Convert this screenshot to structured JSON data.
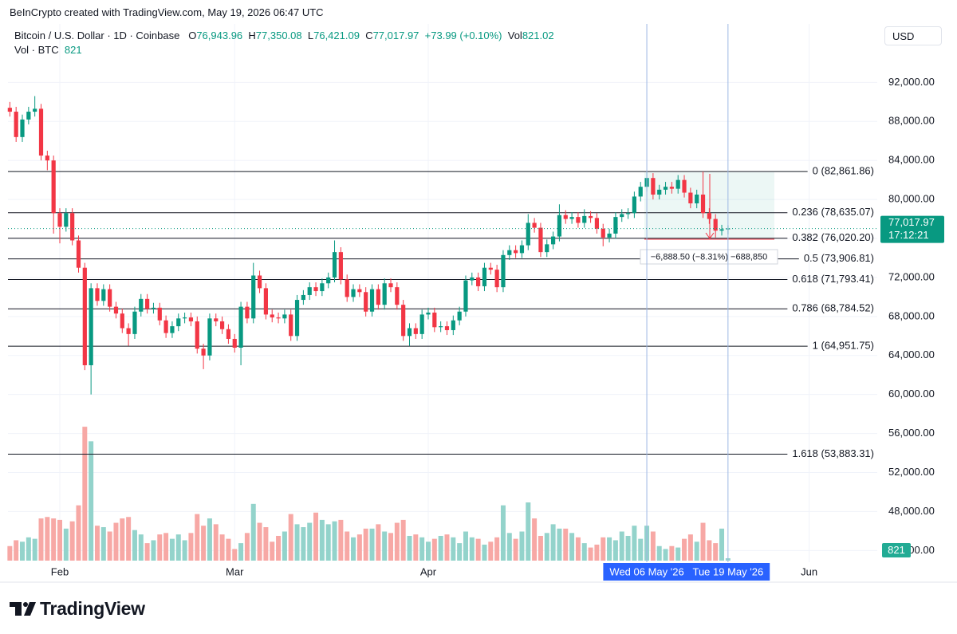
{
  "header": {
    "attribution": "BeInCrypto created with TradingView.com, May 19, 2026 06:47 UTC"
  },
  "chart_data": {
    "type": "candlestick",
    "title": "Bitcoin / U.S. Dollar · 1D · Coinbase",
    "legend": {
      "open_key": "O",
      "open": "76,943.96",
      "high_key": "H",
      "high": "77,350.08",
      "low_key": "L",
      "low": "76,421.09",
      "close_key": "C",
      "close": "77,017.97",
      "change": "+73.99 (+0.10%)",
      "vol_key": "Vol",
      "vol": "821.02"
    },
    "currency": "USD",
    "categories": [
      null,
      null,
      null,
      null,
      null,
      null,
      null,
      null,
      null,
      null,
      null,
      null,
      null,
      null,
      null,
      null,
      null,
      null,
      null,
      null,
      null,
      null,
      null,
      null,
      null,
      null,
      null,
      null,
      null,
      null,
      null,
      null,
      null,
      null,
      null,
      null,
      null,
      null,
      null,
      null,
      null,
      null,
      null,
      null,
      null,
      null,
      null,
      null,
      null,
      null,
      null,
      null,
      null,
      null,
      null,
      null,
      null,
      null,
      null,
      null,
      null,
      null,
      null,
      null,
      null,
      null,
      null,
      null,
      null,
      null,
      null,
      null,
      null,
      null,
      null,
      null,
      null,
      null,
      null,
      null,
      null,
      null,
      null,
      null,
      null,
      null,
      null,
      null,
      null,
      null,
      null,
      null,
      null,
      null,
      null,
      null,
      null,
      null,
      null,
      null,
      null,
      null,
      "Wed 06 May '26",
      null,
      null,
      null,
      null,
      null,
      null,
      null,
      null,
      null,
      null,
      null,
      null,
      "Tue 19 May '26"
    ],
    "open": [
      89400,
      89000,
      86400,
      88200,
      89000,
      89300,
      84500,
      84000,
      78600,
      77200,
      78600,
      75800,
      73000,
      63000,
      70900,
      69600,
      70800,
      69000,
      68300,
      66800,
      66200,
      68500,
      69800,
      68800,
      68900,
      67600,
      66300,
      67000,
      67800,
      67900,
      67500,
      64700,
      64000,
      67800,
      67500,
      66700,
      65700,
      64800,
      69000,
      67800,
      72200,
      70900,
      68200,
      67900,
      67800,
      68200,
      66000,
      69700,
      70200,
      71000,
      70600,
      71400,
      72000,
      74600,
      71800,
      70000,
      70800,
      70500,
      68500,
      70800,
      69200,
      71400,
      71000,
      69200,
      66000,
      66800,
      66200,
      68200,
      68400,
      66900,
      67000,
      66600,
      67600,
      68500,
      71700,
      72000,
      71100,
      73000,
      72800,
      71000,
      74300,
      74800,
      74500,
      75300,
      77600,
      77100,
      74600,
      75400,
      76200,
      78400,
      78000,
      78200,
      77600,
      78300,
      78100,
      77000,
      76100,
      76500,
      78200,
      78500,
      78600,
      80300,
      81300,
      82200,
      80500,
      81000,
      81300,
      81100,
      82000,
      80700,
      79600,
      80500,
      78600,
      78000,
      76800,
      76943.96
    ],
    "high": [
      90000,
      89500,
      88700,
      89500,
      90600,
      89800,
      85000,
      84500,
      79100,
      79100,
      79100,
      76300,
      73500,
      71400,
      71400,
      71300,
      71300,
      69500,
      68800,
      67300,
      69000,
      70300,
      70300,
      69400,
      69400,
      68100,
      67500,
      68300,
      68400,
      68400,
      68000,
      65200,
      68300,
      68300,
      68000,
      67200,
      66200,
      69500,
      69500,
      73500,
      72700,
      71400,
      68700,
      68400,
      68700,
      68700,
      70200,
      70700,
      71500,
      71500,
      71900,
      72500,
      75800,
      75100,
      72300,
      71300,
      71300,
      71000,
      71300,
      71300,
      71900,
      71900,
      71500,
      69700,
      67300,
      67300,
      68700,
      68900,
      68900,
      67500,
      67500,
      68100,
      69000,
      72200,
      72500,
      72500,
      73500,
      73500,
      73300,
      74800,
      75300,
      75300,
      75800,
      78500,
      78100,
      77600,
      75900,
      76700,
      79500,
      78900,
      78700,
      78700,
      79000,
      78800,
      78600,
      77500,
      77000,
      78700,
      79000,
      79100,
      80800,
      81800,
      82800,
      82700,
      81500,
      81800,
      81800,
      82500,
      82500,
      81200,
      81000,
      82861.86,
      79100,
      78500,
      77400,
      77350.08
    ],
    "low": [
      88500,
      85900,
      85900,
      87700,
      88500,
      84000,
      83000,
      76500,
      75500,
      76700,
      75300,
      72500,
      62500,
      60000,
      69100,
      69100,
      68500,
      67800,
      66300,
      65000,
      65700,
      68000,
      68300,
      68300,
      67100,
      65800,
      65800,
      66500,
      67300,
      67000,
      64200,
      62600,
      63500,
      67000,
      66200,
      65200,
      64300,
      63000,
      67300,
      67300,
      70400,
      67700,
      67400,
      67300,
      67300,
      65500,
      65500,
      69200,
      69700,
      70100,
      70100,
      70900,
      71500,
      71300,
      69500,
      69500,
      70000,
      68000,
      68000,
      68700,
      68700,
      70500,
      68700,
      65500,
      65000,
      65700,
      65700,
      67700,
      66400,
      66400,
      66100,
      66100,
      67100,
      68000,
      71200,
      70600,
      70600,
      72300,
      70500,
      70500,
      73800,
      74000,
      74000,
      74800,
      76600,
      74100,
      74100,
      74900,
      75700,
      77500,
      77500,
      77100,
      77100,
      77600,
      76500,
      75200,
      75600,
      76000,
      77700,
      78000,
      78100,
      79800,
      80800,
      80000,
      80000,
      80500,
      80600,
      80600,
      80200,
      79100,
      79100,
      78100,
      77500,
      76100,
      76300,
      76421.09
    ],
    "close": [
      89000,
      86400,
      88200,
      89000,
      89300,
      84500,
      84000,
      78600,
      77200,
      78600,
      75800,
      73000,
      63000,
      70900,
      69600,
      70800,
      69000,
      68300,
      66800,
      66200,
      68500,
      69800,
      68800,
      68900,
      67600,
      66300,
      67000,
      67800,
      67900,
      67500,
      64700,
      64000,
      67800,
      67500,
      66700,
      65700,
      64800,
      69000,
      67800,
      72200,
      70900,
      68200,
      67900,
      67800,
      68200,
      66000,
      69700,
      70200,
      71000,
      70600,
      71400,
      72000,
      74600,
      71800,
      70000,
      70800,
      70500,
      68500,
      70800,
      69200,
      71400,
      71000,
      69200,
      66000,
      66800,
      66200,
      68200,
      68400,
      66900,
      67000,
      66600,
      67600,
      68500,
      71700,
      72000,
      71100,
      73000,
      72800,
      71000,
      74300,
      74800,
      74500,
      75300,
      77600,
      77100,
      74600,
      75400,
      76200,
      78400,
      78000,
      78200,
      77600,
      78300,
      78100,
      77000,
      76100,
      76500,
      78200,
      78500,
      78600,
      80300,
      81300,
      82200,
      80500,
      81000,
      81300,
      81100,
      82000,
      80700,
      79600,
      80500,
      78600,
      78000,
      76800,
      76943.96,
      77017.97
    ],
    "up_color": "#089981",
    "down_color": "#f23645",
    "volume": {
      "name": "Vol · BTC",
      "value_label": "821",
      "up_color": "#93d3cb",
      "down_color": "#f7a8a5",
      "badge_color": "#22ab94",
      "vlim": [
        0,
        60000
      ],
      "values": [
        5000,
        7000,
        6500,
        8000,
        7500,
        14500,
        15000,
        14500,
        14000,
        11000,
        13500,
        19000,
        46000,
        41000,
        12000,
        11500,
        10000,
        13000,
        14500,
        15000,
        10500,
        9000,
        6000,
        7000,
        9000,
        9500,
        7500,
        9000,
        7000,
        9500,
        16000,
        12000,
        14500,
        12500,
        9000,
        7500,
        4000,
        6000,
        9500,
        19500,
        13000,
        11500,
        6500,
        8500,
        10000,
        16000,
        12500,
        11500,
        13000,
        16500,
        14000,
        12500,
        13500,
        14000,
        10000,
        8000,
        9000,
        11000,
        11000,
        12500,
        10000,
        9500,
        13000,
        14000,
        8500,
        9000,
        8000,
        6500,
        7500,
        8500,
        9000,
        8000,
        6000,
        10000,
        8000,
        7500,
        5500,
        6500,
        8000,
        19000,
        9500,
        7500,
        10000,
        20000,
        14500,
        8500,
        9500,
        12500,
        11000,
        11000,
        9500,
        8000,
        6000,
        4500,
        5500,
        8000,
        8000,
        7000,
        10000,
        8500,
        12000,
        7500,
        12000,
        10000,
        5000,
        4000,
        5000,
        4500,
        7500,
        9000,
        6500,
        13000,
        7000,
        6000,
        11000,
        821.02
      ]
    },
    "ylim": [
      42800,
      98000
    ],
    "yticks": [
      {
        "value": 92000,
        "label": "92,000.00"
      },
      {
        "value": 88000,
        "label": "88,000.00"
      },
      {
        "value": 84000,
        "label": "84,000.00"
      },
      {
        "value": 80000,
        "label": "80,000.00"
      },
      {
        "value": 76000,
        "label": "76,000.00"
      },
      {
        "value": 72000,
        "label": "72,000.00"
      },
      {
        "value": 68000,
        "label": "68,000.00"
      },
      {
        "value": 64000,
        "label": "64,000.00"
      },
      {
        "value": 60000,
        "label": "60,000.00"
      },
      {
        "value": 56000,
        "label": "56,000.00"
      },
      {
        "value": 52000,
        "label": "52,000.00"
      },
      {
        "value": 48000,
        "label": "48,000.00"
      },
      {
        "value": 44000,
        "label": "44,000.00"
      }
    ],
    "xlim": [
      -0.3,
      138.9
    ],
    "xticks": [
      {
        "value": 8,
        "label": "Feb"
      },
      {
        "value": 36,
        "label": "Mar"
      },
      {
        "value": 67,
        "label": "Apr"
      },
      {
        "value": 128,
        "label": "Jun"
      }
    ],
    "grid": true,
    "fib_levels": [
      {
        "label": "0 (82,861.86)",
        "value": 82861.86
      },
      {
        "label": "0.236 (78,635.07)",
        "value": 78635.07
      },
      {
        "label": "0.382 (76,020.20)",
        "value": 76020.2
      },
      {
        "label": "0.5 (73,906.81)",
        "value": 73906.81
      },
      {
        "label": "0.618 (71,793.41)",
        "value": 71793.41
      },
      {
        "label": "0.786 (68,784.52)",
        "value": 68784.52
      },
      {
        "label": "1 (64,951.75)",
        "value": 64951.75
      },
      {
        "label": "1.618 (53,883.31)",
        "value": 53883.31
      }
    ],
    "last_price": {
      "label": "77,017.97",
      "countdown": "17:12:21",
      "color": "#089981"
    },
    "measure": {
      "label": "−6,888.50 (−8.31%) −688,850"
    }
  },
  "footer": {
    "brand": "TradingView"
  }
}
